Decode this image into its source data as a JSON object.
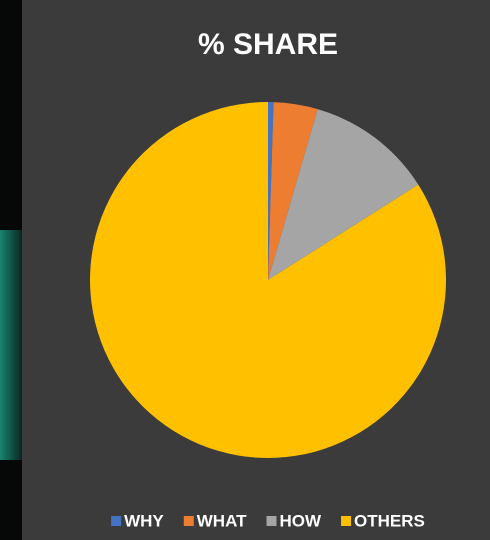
{
  "chart_data": {
    "type": "pie",
    "title": "% SHARE",
    "categories": [
      "WHY",
      "WHAT",
      "HOW",
      "OTHERS"
    ],
    "values": [
      0.5,
      4,
      11.5,
      84
    ],
    "colors": [
      "#4472c4",
      "#ed7d31",
      "#a5a5a5",
      "#ffc000"
    ],
    "legend": "bottom"
  }
}
